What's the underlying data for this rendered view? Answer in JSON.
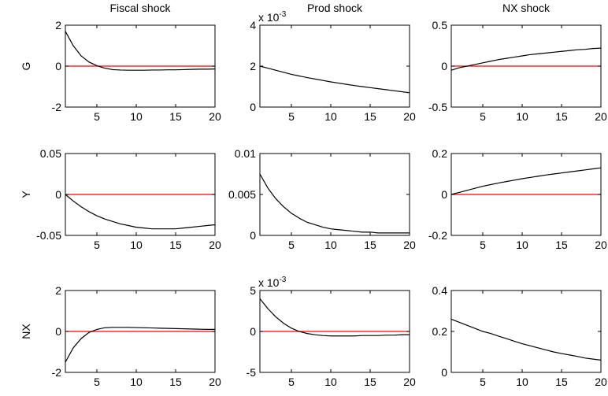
{
  "chart_data": [
    {
      "type": "line",
      "title": "Fiscal shock",
      "ylabel": "G",
      "x": [
        1,
        2,
        3,
        4,
        5,
        6,
        7,
        8,
        9,
        10,
        11,
        12,
        13,
        14,
        15,
        16,
        17,
        18,
        19,
        20
      ],
      "color": "#000000",
      "values": [
        1.7,
        1.0,
        0.5,
        0.2,
        0.02,
        -0.1,
        -0.17,
        -0.19,
        -0.2,
        -0.2,
        -0.2,
        -0.19,
        -0.19,
        -0.18,
        -0.18,
        -0.17,
        -0.16,
        -0.15,
        -0.15,
        -0.14
      ],
      "xlim": [
        1,
        20
      ],
      "xticks": [
        5,
        10,
        15,
        20
      ],
      "ylim": [
        -2,
        2
      ],
      "yticks": [
        -2,
        0,
        2
      ],
      "hline": 0,
      "hline_color": "#ff0000"
    },
    {
      "type": "line",
      "title": "Prod shock",
      "y_multiplier": {
        "base": "x 10",
        "exponent": "-3"
      },
      "x": [
        1,
        2,
        3,
        4,
        5,
        6,
        7,
        8,
        9,
        10,
        11,
        12,
        13,
        14,
        15,
        16,
        17,
        18,
        19,
        20
      ],
      "color": "#000000",
      "values": [
        2.0,
        1.9,
        1.8,
        1.7,
        1.6,
        1.52,
        1.44,
        1.37,
        1.3,
        1.23,
        1.17,
        1.11,
        1.05,
        1.0,
        0.95,
        0.9,
        0.85,
        0.8,
        0.75,
        0.7
      ],
      "xlim": [
        1,
        20
      ],
      "xticks": [
        5,
        10,
        15,
        20
      ],
      "ylim": [
        0,
        4
      ],
      "yticks": [
        0,
        2,
        4
      ]
    },
    {
      "type": "line",
      "title": "NX shock",
      "x": [
        1,
        2,
        3,
        4,
        5,
        6,
        7,
        8,
        9,
        10,
        11,
        12,
        13,
        14,
        15,
        16,
        17,
        18,
        19,
        20
      ],
      "color": "#000000",
      "values": [
        -0.05,
        -0.02,
        0.0,
        0.02,
        0.04,
        0.06,
        0.08,
        0.095,
        0.11,
        0.125,
        0.14,
        0.15,
        0.16,
        0.17,
        0.18,
        0.19,
        0.2,
        0.205,
        0.215,
        0.22
      ],
      "xlim": [
        1,
        20
      ],
      "xticks": [
        5,
        10,
        15,
        20
      ],
      "ylim": [
        -0.5,
        0.5
      ],
      "yticks": [
        -0.5,
        0,
        0.5
      ],
      "hline": 0,
      "hline_color": "#ff0000"
    },
    {
      "type": "line",
      "ylabel": "Y",
      "x": [
        1,
        2,
        3,
        4,
        5,
        6,
        7,
        8,
        9,
        10,
        11,
        12,
        13,
        14,
        15,
        16,
        17,
        18,
        19,
        20
      ],
      "color": "#000000",
      "values": [
        0,
        -0.008,
        -0.015,
        -0.021,
        -0.026,
        -0.03,
        -0.033,
        -0.036,
        -0.038,
        -0.04,
        -0.041,
        -0.042,
        -0.042,
        -0.042,
        -0.042,
        -0.041,
        -0.04,
        -0.039,
        -0.038,
        -0.037
      ],
      "xlim": [
        1,
        20
      ],
      "xticks": [
        5,
        10,
        15,
        20
      ],
      "ylim": [
        -0.05,
        0.05
      ],
      "yticks": [
        -0.05,
        0,
        0.05
      ],
      "hline": 0,
      "hline_color": "#ff0000"
    },
    {
      "type": "line",
      "x": [
        1,
        2,
        3,
        4,
        5,
        6,
        7,
        8,
        9,
        10,
        11,
        12,
        13,
        14,
        15,
        16,
        17,
        18,
        19,
        20
      ],
      "color": "#000000",
      "values": [
        0.0075,
        0.0058,
        0.0045,
        0.0035,
        0.0027,
        0.0021,
        0.0016,
        0.0013,
        0.001,
        0.0008,
        0.0007,
        0.0006,
        0.0005,
        0.0004,
        0.0004,
        0.0003,
        0.0003,
        0.0003,
        0.0003,
        0.0003
      ],
      "xlim": [
        1,
        20
      ],
      "xticks": [
        5,
        10,
        15,
        20
      ],
      "ylim": [
        0,
        0.01
      ],
      "yticks": [
        0,
        0.005,
        0.01
      ]
    },
    {
      "type": "line",
      "x": [
        1,
        2,
        3,
        4,
        5,
        6,
        7,
        8,
        9,
        10,
        11,
        12,
        13,
        14,
        15,
        16,
        17,
        18,
        19,
        20
      ],
      "color": "#000000",
      "values": [
        0,
        0.01,
        0.02,
        0.03,
        0.04,
        0.048,
        0.056,
        0.063,
        0.07,
        0.077,
        0.083,
        0.089,
        0.095,
        0.1,
        0.105,
        0.11,
        0.115,
        0.12,
        0.125,
        0.13
      ],
      "xlim": [
        1,
        20
      ],
      "xticks": [
        5,
        10,
        15,
        20
      ],
      "ylim": [
        -0.2,
        0.2
      ],
      "yticks": [
        -0.2,
        0,
        0.2
      ],
      "hline": 0,
      "hline_color": "#ff0000"
    },
    {
      "type": "line",
      "ylabel": "NX",
      "x": [
        1,
        2,
        3,
        4,
        5,
        6,
        7,
        8,
        9,
        10,
        11,
        12,
        13,
        14,
        15,
        16,
        17,
        18,
        19,
        20
      ],
      "color": "#000000",
      "values": [
        -1.5,
        -0.8,
        -0.35,
        -0.05,
        0.1,
        0.18,
        0.2,
        0.2,
        0.2,
        0.19,
        0.18,
        0.17,
        0.16,
        0.15,
        0.14,
        0.13,
        0.12,
        0.11,
        0.1,
        0.1
      ],
      "xlim": [
        1,
        20
      ],
      "xticks": [
        5,
        10,
        15,
        20
      ],
      "ylim": [
        -2,
        2
      ],
      "yticks": [
        -2,
        0,
        2
      ],
      "hline": 0,
      "hline_color": "#ff0000"
    },
    {
      "type": "line",
      "y_multiplier": {
        "base": "x 10",
        "exponent": "-3"
      },
      "x": [
        1,
        2,
        3,
        4,
        5,
        6,
        7,
        8,
        9,
        10,
        11,
        12,
        13,
        14,
        15,
        16,
        17,
        18,
        19,
        20
      ],
      "color": "#000000",
      "values": [
        4,
        2.8,
        1.8,
        1.0,
        0.4,
        0.0,
        -0.25,
        -0.4,
        -0.5,
        -0.55,
        -0.55,
        -0.55,
        -0.55,
        -0.5,
        -0.5,
        -0.5,
        -0.45,
        -0.45,
        -0.4,
        -0.4
      ],
      "xlim": [
        1,
        20
      ],
      "xticks": [
        5,
        10,
        15,
        20
      ],
      "ylim": [
        -5,
        5
      ],
      "yticks": [
        -5,
        0,
        5
      ],
      "hline": 0,
      "hline_color": "#ff0000"
    },
    {
      "type": "line",
      "x": [
        1,
        2,
        3,
        4,
        5,
        6,
        7,
        8,
        9,
        10,
        11,
        12,
        13,
        14,
        15,
        16,
        17,
        18,
        19,
        20
      ],
      "color": "#000000",
      "values": [
        0.26,
        0.245,
        0.23,
        0.215,
        0.2,
        0.19,
        0.177,
        0.165,
        0.152,
        0.14,
        0.13,
        0.12,
        0.11,
        0.1,
        0.092,
        0.085,
        0.078,
        0.07,
        0.065,
        0.06
      ],
      "xlim": [
        1,
        20
      ],
      "xticks": [
        5,
        10,
        15,
        20
      ],
      "ylim": [
        0,
        0.4
      ],
      "yticks": [
        0,
        0.2,
        0.4
      ]
    }
  ]
}
